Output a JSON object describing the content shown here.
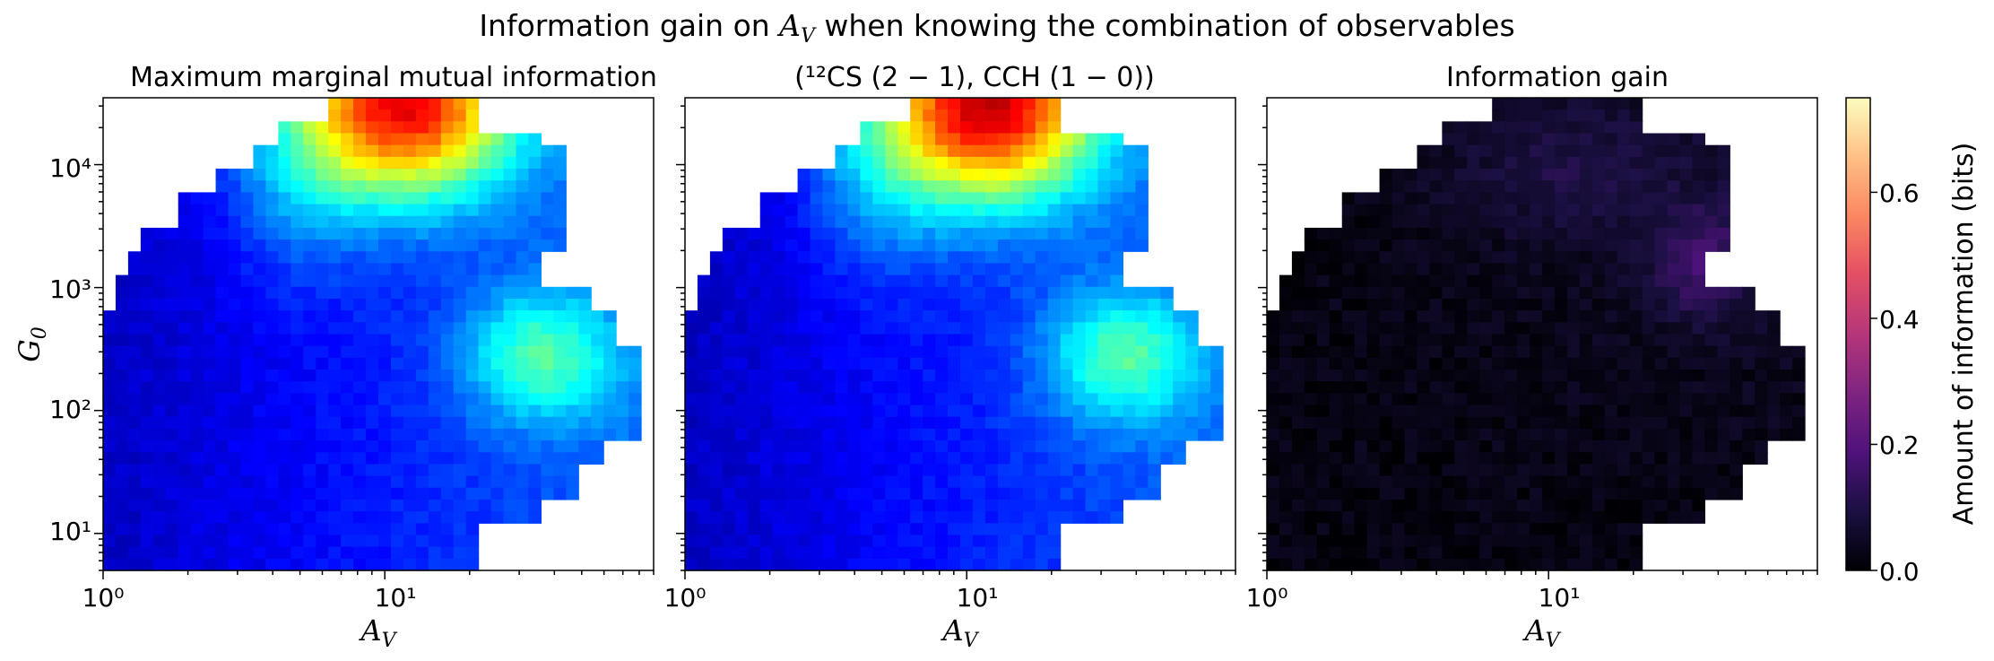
{
  "suptitle": {
    "prefix": "Information gain on ",
    "var_main": "A",
    "var_sub": "V",
    "suffix": " when knowing the combination of observables"
  },
  "panels": [
    {
      "title": "Maximum marginal mutual information",
      "xlabel": "A_V",
      "ylabel": "G_0",
      "colormap": "jet"
    },
    {
      "title": "(¹²CS (2 − 1), CCH (1 − 0))",
      "xlabel": "A_V",
      "ylabel": "",
      "colormap": "jet"
    },
    {
      "title": "Information gain",
      "xlabel": "A_V",
      "ylabel": "",
      "colormap": "magma"
    }
  ],
  "xticks": [
    "10⁰",
    "10¹"
  ],
  "yticks": [
    "10¹",
    "10²",
    "10³",
    "10⁴"
  ],
  "colorbar": {
    "label": "Amount of information (bits)",
    "ticks": [
      "0.0",
      "0.2",
      "0.4",
      "0.6"
    ],
    "range": [
      0.0,
      0.75
    ],
    "colormap": "magma"
  },
  "chart_data": [
    {
      "type": "heatmap",
      "title": "Maximum marginal mutual information",
      "xlabel": "A_V",
      "ylabel": "G_0",
      "xscale": "log",
      "yscale": "log",
      "xlim": [
        1,
        90
      ],
      "ylim": [
        5,
        35000
      ],
      "value_range": [
        0.0,
        0.75
      ],
      "note_hotspot": "maximum ~0.70 bits near A_V≈20, G_0≈3e4"
    },
    {
      "type": "heatmap",
      "title": "(¹²CS (2 − 1), CCH (1 − 0))",
      "xlabel": "A_V",
      "xscale": "log",
      "yscale": "log",
      "xlim": [
        1,
        90
      ],
      "ylim": [
        5,
        35000
      ],
      "value_range": [
        0.0,
        0.75
      ],
      "note_hotspot": "maximum ~0.72 bits near A_V≈22, G_0≈3e4"
    },
    {
      "type": "heatmap",
      "title": "Information gain",
      "xlabel": "A_V",
      "xscale": "log",
      "yscale": "log",
      "xlim": [
        1,
        90
      ],
      "ylim": [
        5,
        35000
      ],
      "value_range": [
        0.0,
        0.75
      ],
      "note_hotspot": "gain up to ~0.3 bits near A_V≈40, G_0≈1e3"
    }
  ]
}
